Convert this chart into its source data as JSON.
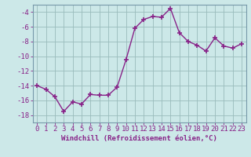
{
  "x": [
    0,
    1,
    2,
    3,
    4,
    5,
    6,
    7,
    8,
    9,
    10,
    11,
    12,
    13,
    14,
    15,
    16,
    17,
    18,
    19,
    20,
    21,
    22,
    23
  ],
  "y": [
    -14.0,
    -14.5,
    -15.5,
    -17.5,
    -16.2,
    -16.5,
    -15.2,
    -15.3,
    -15.3,
    -14.2,
    -10.5,
    -6.2,
    -5.0,
    -4.6,
    -4.7,
    -3.5,
    -6.8,
    -8.0,
    -8.5,
    -9.3,
    -7.5,
    -8.6,
    -8.9,
    -8.3
  ],
  "line_color": "#882288",
  "marker": "+",
  "marker_size": 4,
  "marker_linewidth": 1.2,
  "bg_color": "#cce8e8",
  "grid_color": "#99bbbb",
  "xlabel": "Windchill (Refroidissement éolien,°C)",
  "xlim": [
    -0.5,
    23.5
  ],
  "ylim": [
    -19,
    -3
  ],
  "yticks": [
    -18,
    -16,
    -14,
    -12,
    -10,
    -8,
    -6,
    -4
  ],
  "xticks": [
    0,
    1,
    2,
    3,
    4,
    5,
    6,
    7,
    8,
    9,
    10,
    11,
    12,
    13,
    14,
    15,
    16,
    17,
    18,
    19,
    20,
    21,
    22,
    23
  ],
  "xtick_labels": [
    "0",
    "1",
    "2",
    "3",
    "4",
    "5",
    "6",
    "7",
    "8",
    "9",
    "10",
    "11",
    "12",
    "13",
    "14",
    "15",
    "16",
    "17",
    "18",
    "19",
    "20",
    "21",
    "22",
    "23"
  ],
  "xlabel_fontsize": 6.5,
  "tick_fontsize": 6.5,
  "line_width": 1.0,
  "label_color": "#882288"
}
